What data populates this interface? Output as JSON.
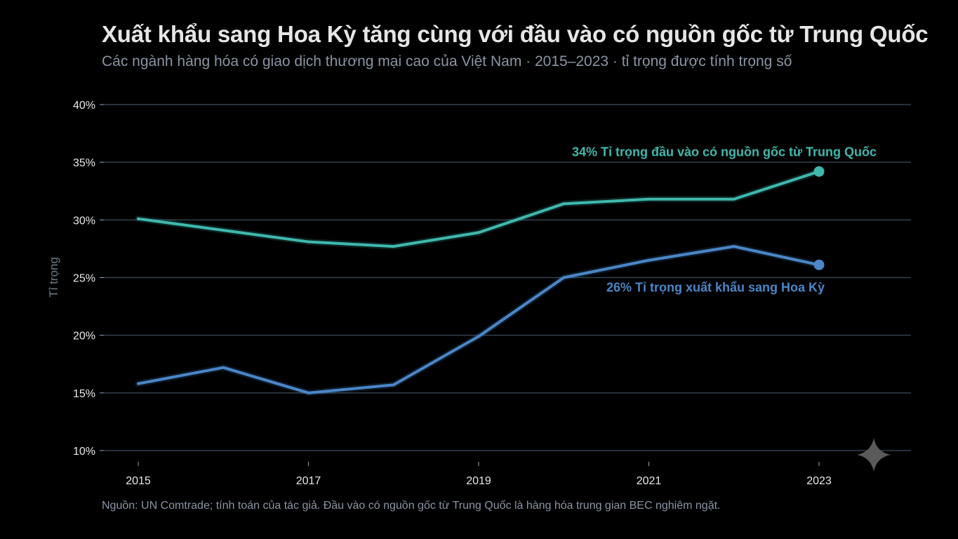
{
  "title": "Xuất khẩu sang Hoa Kỳ tăng cùng với đầu vào có nguồn gốc từ Trung Quốc",
  "subtitle": "Các ngành hàng hóa có giao dịch thương mại cao của Việt Nam · 2015–2023 · tỉ trọng được tính trọng số",
  "source": "Nguồn: UN Comtrade; tính toán của tác giả. Đầu vào có nguồn gốc từ Trung Quốc là hàng hóa trung gian BEC nghiêm ngặt.",
  "colors": {
    "background": "#000000",
    "teal": "#3fb8ad",
    "blue": "#4a86c8",
    "grid": "#33414f",
    "watermark": "#5a5a5a"
  },
  "watermark_icon": "sparkle-icon",
  "chart_data": {
    "type": "line",
    "ylabel": "Tỉ trọng",
    "ylim": [
      10,
      40
    ],
    "yticks": [
      10,
      15,
      20,
      25,
      30,
      35,
      40
    ],
    "ytick_labels": [
      "10%",
      "15%",
      "20%",
      "25%",
      "30%",
      "35%",
      "40%"
    ],
    "xlim": [
      2015,
      2023
    ],
    "xticks": [
      2015,
      2017,
      2019,
      2021,
      2023
    ],
    "xtick_labels": [
      "2015",
      "2017",
      "2019",
      "2021",
      "2023"
    ],
    "grid": true,
    "x": [
      2015,
      2016,
      2017,
      2018,
      2019,
      2020,
      2021,
      2022,
      2023
    ],
    "series": [
      {
        "label": "34% Tỉ trọng đầu vào có nguồn gốc từ Trung Quốc",
        "color": "#3fb8ad",
        "values": [
          30.1,
          29.1,
          28.1,
          27.7,
          28.9,
          31.4,
          31.8,
          31.8,
          34.2
        ]
      },
      {
        "label": "26% Tỉ trọng xuất khẩu sang Hoa Kỳ",
        "color": "#4a86c8",
        "values": [
          15.8,
          17.2,
          15.0,
          15.7,
          19.9,
          25.0,
          26.5,
          27.7,
          26.1
        ]
      }
    ]
  }
}
